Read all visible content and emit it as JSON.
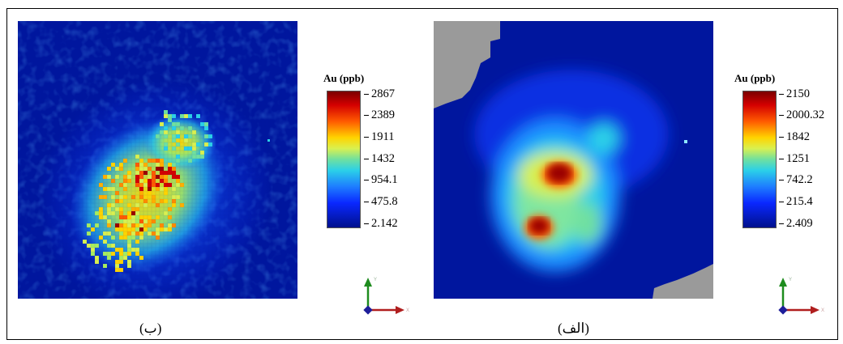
{
  "chart_data": [
    {
      "type": "heatmap",
      "caption": "(ب)",
      "colorbar_title": "Au (ppb)",
      "colorbar_ticks": [
        "2867",
        "2389",
        "1911",
        "1432",
        "954.1",
        "475.8",
        "2.142"
      ],
      "colorbar_min": 2.142,
      "colorbar_max": 2867,
      "axis_labels": {
        "y": "Y",
        "x": "X"
      }
    },
    {
      "type": "heatmap",
      "caption": "(الف)",
      "colorbar_title": "Au (ppb)",
      "colorbar_ticks": [
        "2150",
        "2000.32",
        "1842",
        "1251",
        "742.2",
        "215.4",
        "2.409"
      ],
      "colorbar_min": 2.409,
      "colorbar_max": 2150,
      "axis_labels": {
        "y": "Y",
        "x": "X"
      }
    }
  ],
  "colors": {
    "nodata": "#9a9a9a",
    "background_low": "#00108c",
    "axis_y": "#1e8c1e",
    "axis_x": "#b01e1e",
    "axis_z": "#1e1e9a"
  }
}
